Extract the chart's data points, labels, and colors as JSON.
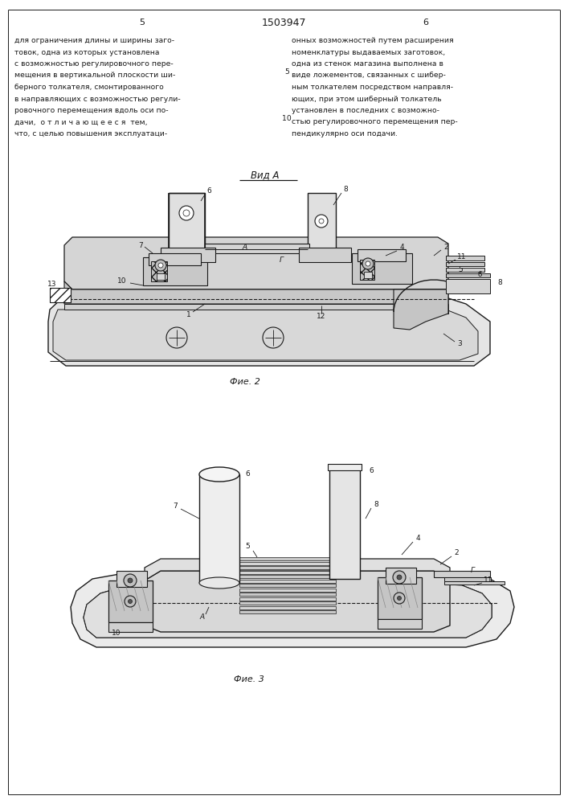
{
  "bg_color": "#ffffff",
  "page_width": 7.07,
  "page_height": 10.0,
  "header_left_col": "5",
  "header_center": "1503947",
  "header_right_col": "6",
  "text_left": "для ограничения длины и ширины заго-\nтовок, одна из которых установлена\nс возможностью регулировочного пере-\nмещения в вертикальной плоскости ши-\nберного толкателя, смонтированного\nв направляющих с возможностью регули-\nровочного перемещения вдоль оси по-\nдачи,   о т л и ч а ю щ е е с я   тем,\nчто, с целью повышения эксплуатаци-",
  "text_right": "онных возможностей путем расширения\nноменклатуры выдаваемых заготовок,\nодна из стенок магазина выполнена в\nвиде ложементов, связанных с шибер-\nным толкателем посредством направля-\nющих, при этом шиберный толкатель\nустановлен в последних с возможно-\nстью регулировочного перемещения пер-\nпендикулярно оси подачи.",
  "fig2_title": "Вид А",
  "fig2_caption": "Фие. 2",
  "fig3_caption": "Фие. 3",
  "lc": "#1a1a1a",
  "fc_light": "#e8e8e8",
  "fc_mid": "#d0d0d0",
  "fc_dark": "#b0b0b0"
}
